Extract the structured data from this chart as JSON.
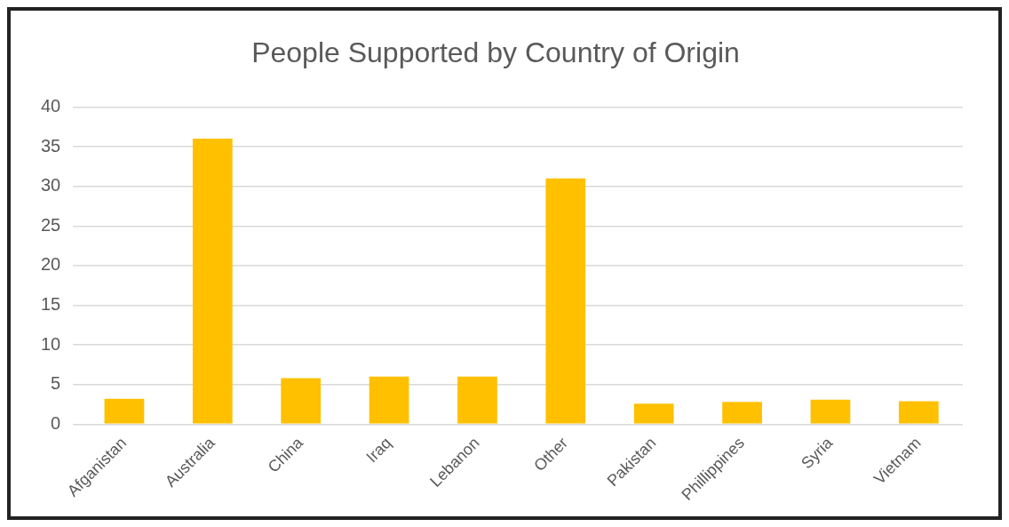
{
  "chart_data": {
    "type": "bar",
    "title": "People Supported by Country of Origin",
    "categories": [
      "Afganistan",
      "Australia",
      "China",
      "Iraq",
      "Lebanon",
      "Other",
      "Pakistan",
      "Phillippines",
      "Syria",
      "Vietnam"
    ],
    "values": [
      3.2,
      36,
      5.8,
      6,
      6,
      31,
      2.6,
      2.8,
      3.1,
      2.9
    ],
    "color": "#ffc000",
    "ylim": [
      0,
      40
    ],
    "yticks": [
      0,
      5,
      10,
      15,
      20,
      25,
      30,
      35,
      40
    ],
    "grid": "y"
  }
}
